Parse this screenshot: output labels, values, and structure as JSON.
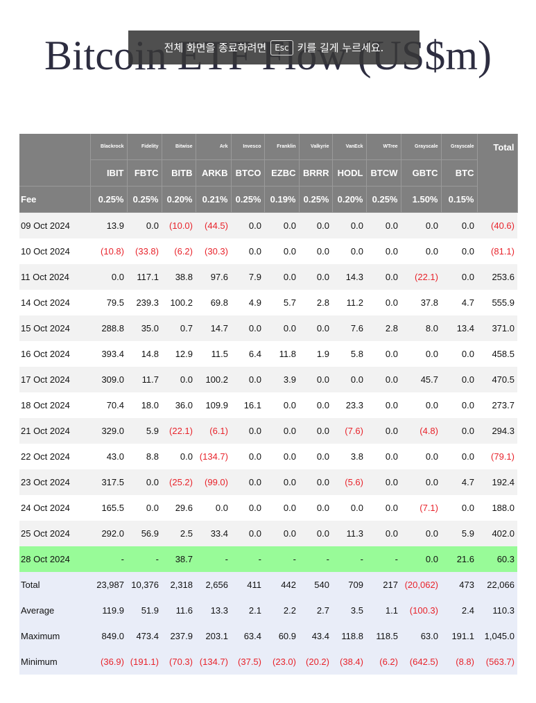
{
  "title": "Bitcoin ETF Flow (US$m)",
  "overlay": {
    "before": "전체 화면을 종료하려면",
    "key": "Esc",
    "after": "키를 길게 누르세요."
  },
  "table": {
    "header": {
      "providers": [
        "Blackrock",
        "Fidelity",
        "Bitwise",
        "Ark",
        "Invesco",
        "Franklin",
        "Valkyrie",
        "VanEck",
        "WTree",
        "Grayscale",
        "Grayscale"
      ],
      "total_label": "Total",
      "tickers": [
        "IBIT",
        "FBTC",
        "BITB",
        "ARKB",
        "BTCO",
        "EZBC",
        "BRRR",
        "HODL",
        "BTCW",
        "GBTC",
        "BTC"
      ],
      "fee_label": "Fee",
      "fees": [
        "0.25%",
        "0.25%",
        "0.20%",
        "0.21%",
        "0.25%",
        "0.19%",
        "0.25%",
        "0.20%",
        "0.25%",
        "1.50%",
        "0.15%"
      ]
    },
    "rows": [
      {
        "label": "09 Oct 2024",
        "values": [
          "13.9",
          "0.0",
          "(10.0)",
          "(44.5)",
          "0.0",
          "0.0",
          "0.0",
          "0.0",
          "0.0",
          "0.0",
          "0.0",
          "(40.6)"
        ]
      },
      {
        "label": "10 Oct 2024",
        "values": [
          "(10.8)",
          "(33.8)",
          "(6.2)",
          "(30.3)",
          "0.0",
          "0.0",
          "0.0",
          "0.0",
          "0.0",
          "0.0",
          "0.0",
          "(81.1)"
        ]
      },
      {
        "label": "11 Oct 2024",
        "values": [
          "0.0",
          "117.1",
          "38.8",
          "97.6",
          "7.9",
          "0.0",
          "0.0",
          "14.3",
          "0.0",
          "(22.1)",
          "0.0",
          "253.6"
        ]
      },
      {
        "label": "14 Oct 2024",
        "values": [
          "79.5",
          "239.3",
          "100.2",
          "69.8",
          "4.9",
          "5.7",
          "2.8",
          "11.2",
          "0.0",
          "37.8",
          "4.7",
          "555.9"
        ]
      },
      {
        "label": "15 Oct 2024",
        "values": [
          "288.8",
          "35.0",
          "0.7",
          "14.7",
          "0.0",
          "0.0",
          "0.0",
          "7.6",
          "2.8",
          "8.0",
          "13.4",
          "371.0"
        ]
      },
      {
        "label": "16 Oct 2024",
        "values": [
          "393.4",
          "14.8",
          "12.9",
          "11.5",
          "6.4",
          "11.8",
          "1.9",
          "5.8",
          "0.0",
          "0.0",
          "0.0",
          "458.5"
        ]
      },
      {
        "label": "17 Oct 2024",
        "values": [
          "309.0",
          "11.7",
          "0.0",
          "100.2",
          "0.0",
          "3.9",
          "0.0",
          "0.0",
          "0.0",
          "45.7",
          "0.0",
          "470.5"
        ]
      },
      {
        "label": "18 Oct 2024",
        "values": [
          "70.4",
          "18.0",
          "36.0",
          "109.9",
          "16.1",
          "0.0",
          "0.0",
          "23.3",
          "0.0",
          "0.0",
          "0.0",
          "273.7"
        ]
      },
      {
        "label": "21 Oct 2024",
        "values": [
          "329.0",
          "5.9",
          "(22.1)",
          "(6.1)",
          "0.0",
          "0.0",
          "0.0",
          "(7.6)",
          "0.0",
          "(4.8)",
          "0.0",
          "294.3"
        ]
      },
      {
        "label": "22 Oct 2024",
        "values": [
          "43.0",
          "8.8",
          "0.0",
          "(134.7)",
          "0.0",
          "0.0",
          "0.0",
          "3.8",
          "0.0",
          "0.0",
          "0.0",
          "(79.1)"
        ]
      },
      {
        "label": "23 Oct 2024",
        "values": [
          "317.5",
          "0.0",
          "(25.2)",
          "(99.0)",
          "0.0",
          "0.0",
          "0.0",
          "(5.6)",
          "0.0",
          "0.0",
          "4.7",
          "192.4"
        ]
      },
      {
        "label": "24 Oct 2024",
        "values": [
          "165.5",
          "0.0",
          "29.6",
          "0.0",
          "0.0",
          "0.0",
          "0.0",
          "0.0",
          "0.0",
          "(7.1)",
          "0.0",
          "188.0"
        ]
      },
      {
        "label": "25 Oct 2024",
        "values": [
          "292.0",
          "56.9",
          "2.5",
          "33.4",
          "0.0",
          "0.0",
          "0.0",
          "11.3",
          "0.0",
          "0.0",
          "5.9",
          "402.0"
        ]
      },
      {
        "label": "28 Oct 2024",
        "values": [
          "-",
          "-",
          "38.7",
          "-",
          "-",
          "-",
          "-",
          "-",
          "-",
          "0.0",
          "21.6",
          "60.3"
        ]
      }
    ],
    "summary": [
      {
        "label": "Total",
        "values": [
          "23,987",
          "10,376",
          "2,318",
          "2,656",
          "411",
          "442",
          "540",
          "709",
          "217",
          "(20,062)",
          "473",
          "22,066"
        ]
      },
      {
        "label": "Average",
        "values": [
          "119.9",
          "51.9",
          "11.6",
          "13.3",
          "2.1",
          "2.2",
          "2.7",
          "3.5",
          "1.1",
          "(100.3)",
          "2.4",
          "110.3"
        ]
      },
      {
        "label": "Maximum",
        "values": [
          "849.0",
          "473.4",
          "237.9",
          "203.1",
          "63.4",
          "60.9",
          "43.4",
          "118.8",
          "118.5",
          "63.0",
          "191.1",
          "1,045.0"
        ]
      },
      {
        "label": "Minimum",
        "values": [
          "(36.9)",
          "(191.1)",
          "(70.3)",
          "(134.7)",
          "(37.5)",
          "(23.0)",
          "(20.2)",
          "(38.4)",
          "(6.2)",
          "(642.5)",
          "(8.8)",
          "(563.7)"
        ]
      }
    ]
  }
}
